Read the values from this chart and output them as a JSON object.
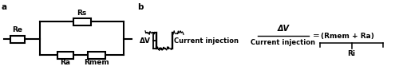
{
  "bg_color": "#ffffff",
  "line_color": "#000000",
  "label_a": "a",
  "label_b": "b",
  "re_label": "Re",
  "rs_label": "Rs",
  "ra_label": "Ra",
  "rmem_label": "Rmem",
  "delta_v_label": "ΔV",
  "current_injection_label": "Current injection",
  "formula_numerator": "ΔV",
  "formula_denominator": "Current injection",
  "formula_equals": "= (Rmem + Ra)",
  "ri_label": "Ri",
  "font_size_labels": 6.5,
  "font_size_ab": 7.5,
  "lw": 1.5
}
